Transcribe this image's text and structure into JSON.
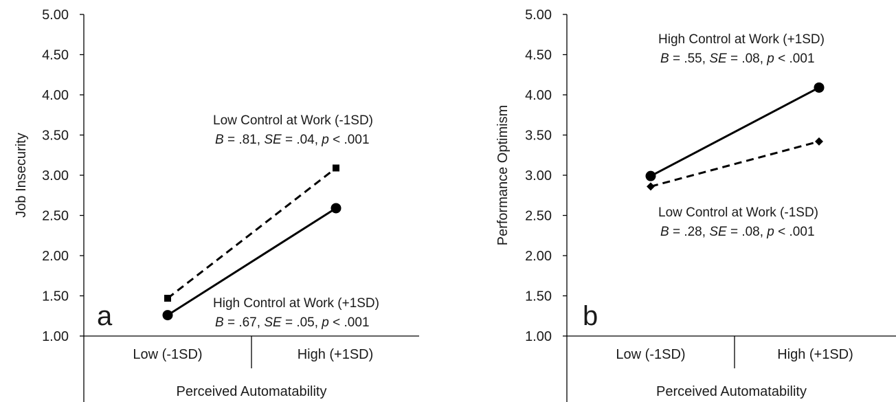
{
  "chart_data": [
    {
      "type": "line",
      "panel_label": "a",
      "ylabel": "Job Insecurity",
      "xlabel": "Perceived Automatability",
      "categories": [
        "Low (-1SD)",
        "High (+1SD)"
      ],
      "ylim": [
        1.0,
        5.0
      ],
      "yticks": [
        "1.00",
        "1.50",
        "2.00",
        "2.50",
        "3.00",
        "3.50",
        "4.00",
        "4.50",
        "5.00"
      ],
      "series": [
        {
          "key": "low",
          "values": [
            1.47,
            3.09
          ],
          "line": "dashed",
          "marker": "square",
          "annotation": {
            "label": "Low Control at Work (-1SD)",
            "B": ".81",
            "SE": ".04",
            "p": "< .001"
          }
        },
        {
          "key": "high",
          "values": [
            1.26,
            2.59
          ],
          "line": "solid",
          "marker": "circle",
          "annotation": {
            "label": "High Control at Work (+1SD)",
            "B": ".67",
            "SE": ".05",
            "p": "< .001"
          }
        }
      ],
      "stat_symbols": {
        "B": "B",
        "SE": "SE",
        "p": "p"
      }
    },
    {
      "type": "line",
      "panel_label": "b",
      "ylabel": "Performance Optimism",
      "xlabel": "Perceived Automatability",
      "categories": [
        "Low (-1SD)",
        "High (+1SD)"
      ],
      "ylim": [
        1.0,
        5.0
      ],
      "yticks": [
        "1.00",
        "1.50",
        "2.00",
        "2.50",
        "3.00",
        "3.50",
        "4.00",
        "4.50",
        "5.00"
      ],
      "series": [
        {
          "key": "high",
          "values": [
            2.99,
            4.09
          ],
          "line": "solid",
          "marker": "circle",
          "annotation": {
            "label": "High Control at Work (+1SD)",
            "B": ".55",
            "SE": ".08",
            "p": "< .001"
          }
        },
        {
          "key": "low",
          "values": [
            2.86,
            3.42
          ],
          "line": "dashed",
          "marker": "diamond",
          "annotation": {
            "label": "Low Control at Work (-1SD)",
            "B": ".28",
            "SE": ".08",
            "p": "< .001"
          }
        }
      ],
      "stat_symbols": {
        "B": "B",
        "SE": "SE",
        "p": "p"
      }
    }
  ]
}
